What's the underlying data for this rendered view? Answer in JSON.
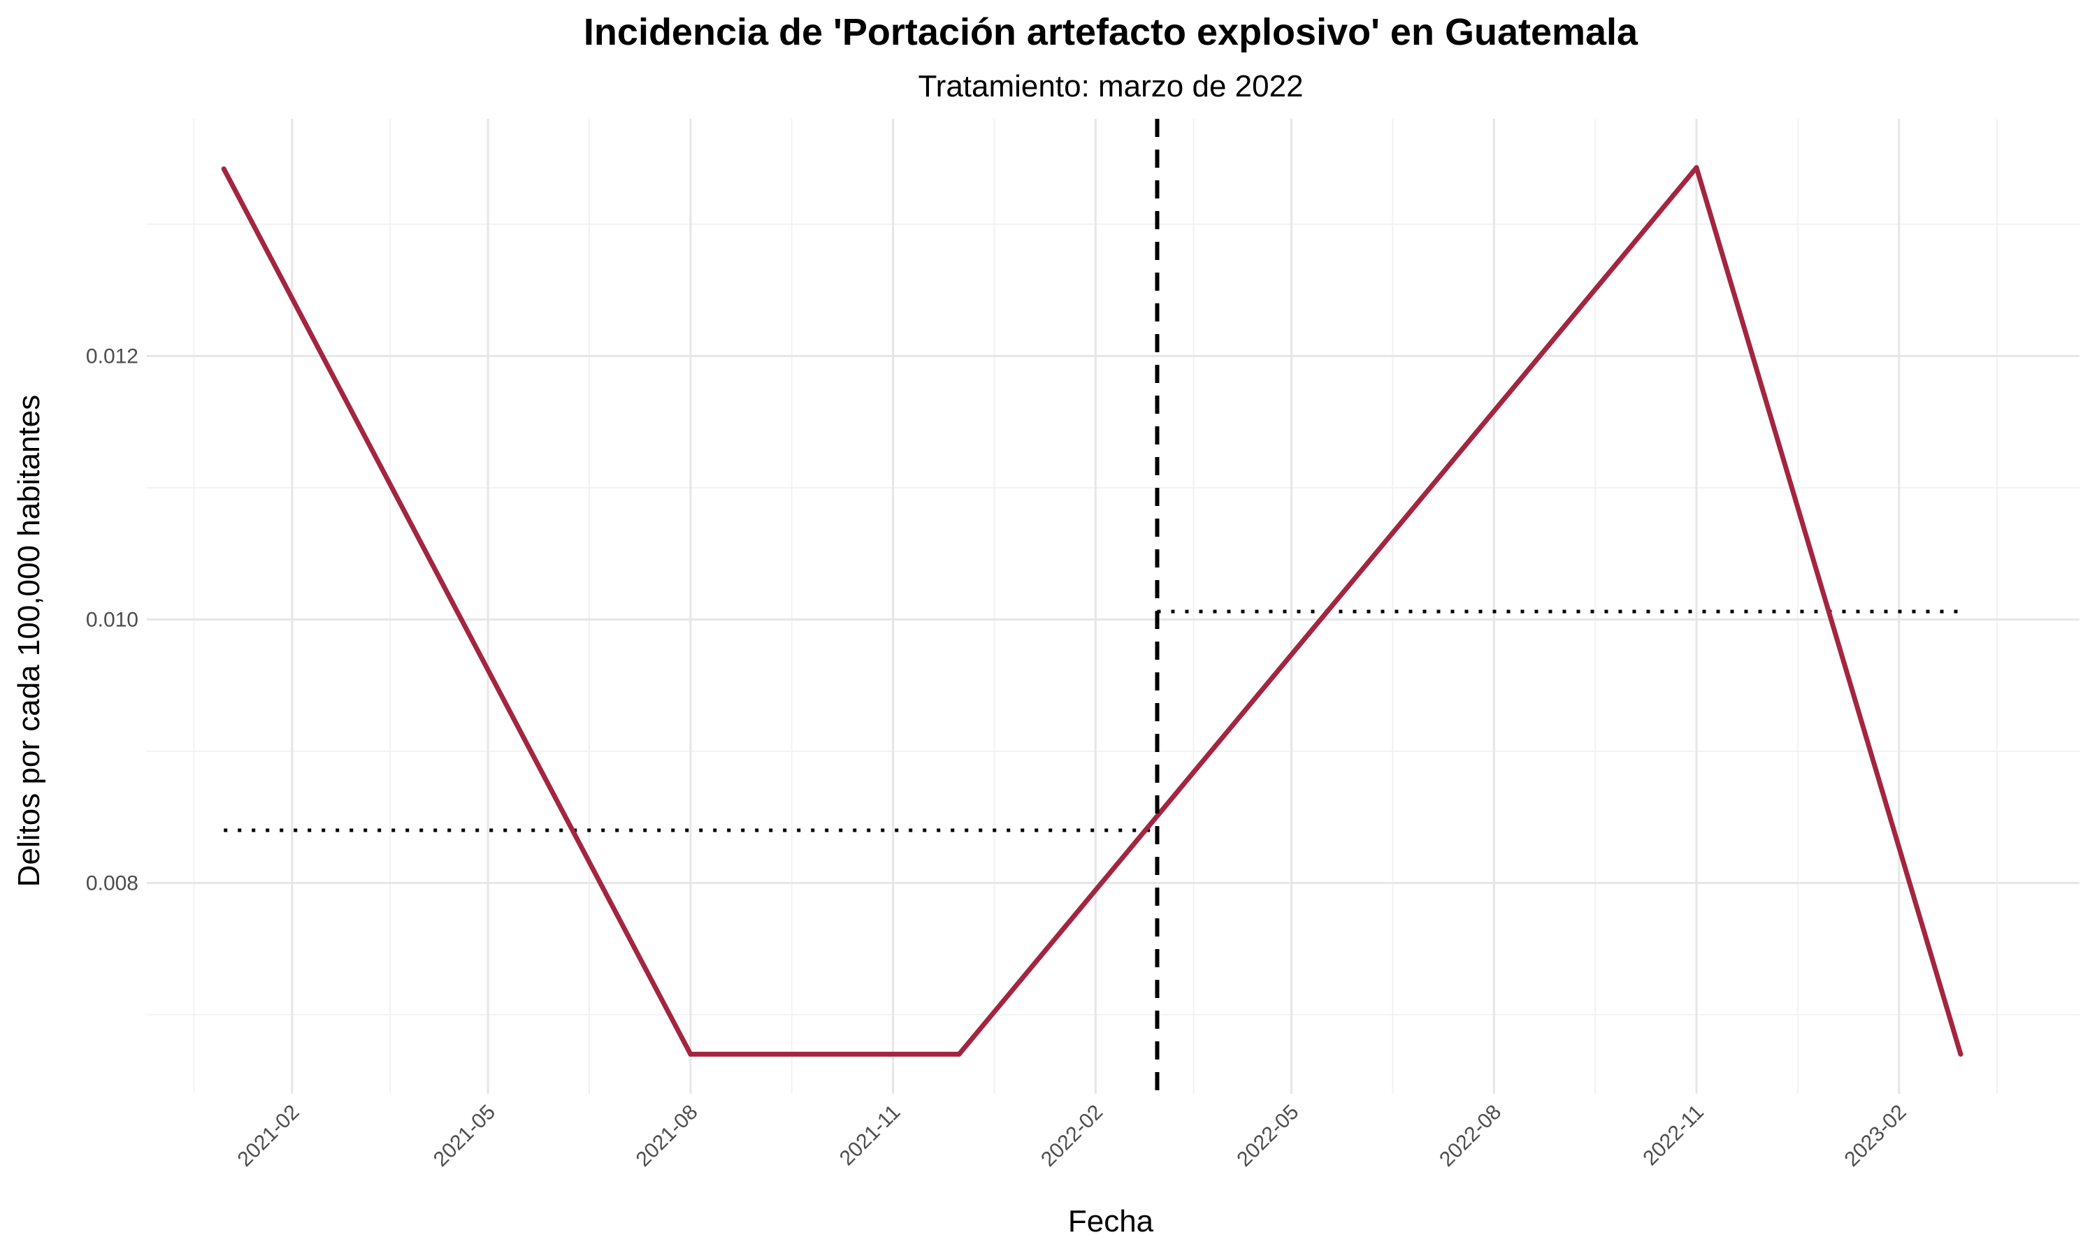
{
  "chart_data": {
    "type": "line",
    "title": "Incidencia de 'Portación artefacto explosivo' en Guatemala",
    "subtitle": "Tratamiento: marzo de 2022",
    "xlabel": "Fecha",
    "ylabel": "Delitos por cada 100,000 habitantes",
    "x_tick_labels": [
      "2021-02",
      "2021-05",
      "2021-08",
      "2021-11",
      "2022-02",
      "2022-05",
      "2022-08",
      "2022-11",
      "2023-02"
    ],
    "y_tick_labels": [
      "0.008",
      "0.010",
      "0.012"
    ],
    "y_ticks": [
      0.008,
      0.01,
      0.012
    ],
    "ylim": [
      0.0064,
      0.0138
    ],
    "xlim": [
      "2020-11-27",
      "2023-04-24"
    ],
    "grid": true,
    "series": [
      {
        "color": "#a3253f",
        "points": [
          {
            "x": "2021-01-01",
            "y": 0.01342
          },
          {
            "x": "2021-08-01",
            "y": 0.0067
          },
          {
            "x": "2021-12-01",
            "y": 0.0067
          },
          {
            "x": "2022-11-01",
            "y": 0.01343
          },
          {
            "x": "2023-03-01",
            "y": 0.0067
          }
        ]
      }
    ],
    "treatment_date": "2022-03-01",
    "pre_mean": {
      "value": 0.0084,
      "from": "2021-01-01",
      "to": "2022-03-01"
    },
    "post_mean": {
      "value": 0.01006,
      "from": "2022-03-01",
      "to": "2023-03-01"
    }
  }
}
